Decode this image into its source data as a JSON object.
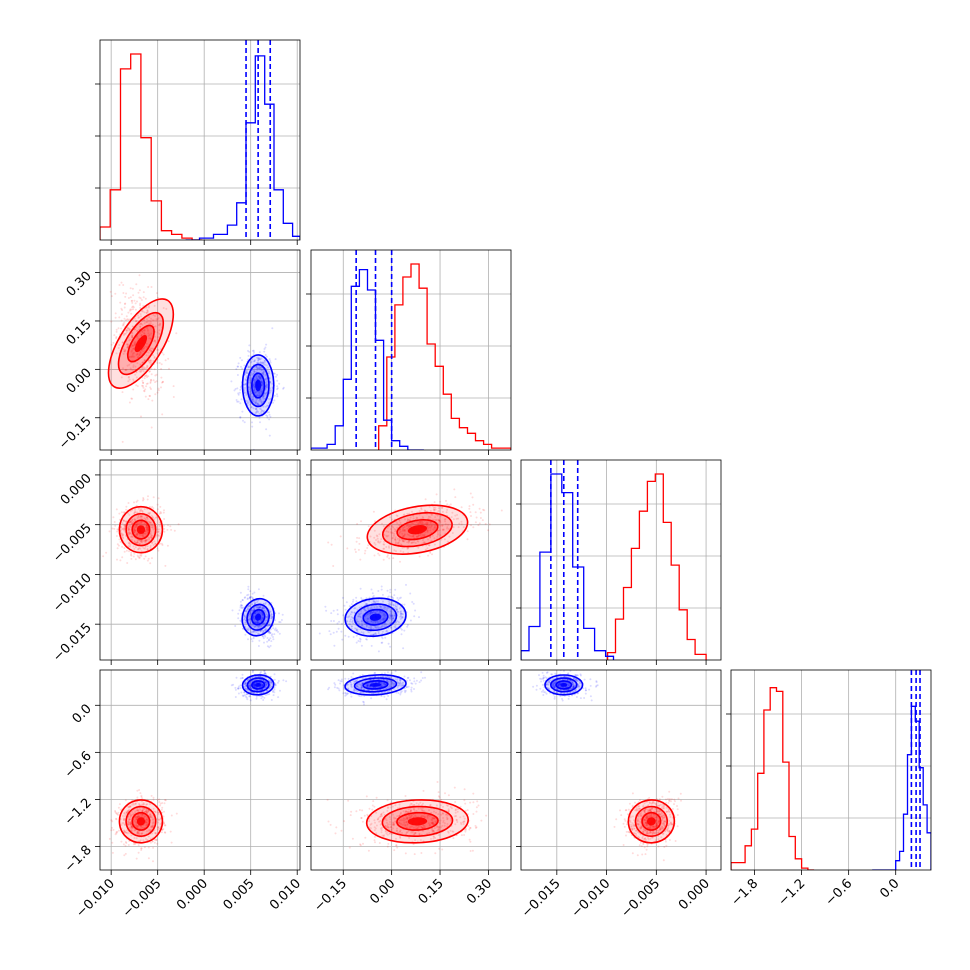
{
  "chart_data": {
    "type": "corner",
    "grid": true,
    "colors": {
      "red": "#ff0000",
      "blue": "#0000ff"
    },
    "parameters": [
      {
        "range": [
          -0.0112,
          0.0103
        ],
        "ticks": [
          -0.01,
          -0.005,
          0.0,
          0.005,
          0.01
        ],
        "tick_labels": [
          "−0.010",
          "−0.005",
          "0.000",
          "0.005",
          "0.010"
        ]
      },
      {
        "range": [
          -0.25,
          0.37
        ],
        "ticks": [
          -0.15,
          0.0,
          0.15,
          0.3
        ],
        "tick_labels": [
          "−0.15",
          "0.00",
          "0.15",
          "0.30"
        ]
      },
      {
        "range": [
          -0.0186,
          0.0015
        ],
        "ticks": [
          -0.015,
          -0.01,
          -0.005,
          0.0
        ],
        "tick_labels": [
          "−0.015",
          "−0.010",
          "−0.005",
          "0.000"
        ]
      },
      {
        "range": [
          -2.1,
          0.45
        ],
        "ticks": [
          -1.8,
          -1.2,
          -0.6,
          0.0
        ],
        "tick_labels": [
          "−1.8",
          "−1.2",
          "−0.6",
          "0.0"
        ]
      }
    ],
    "series": [
      {
        "color": "red",
        "mean": [
          -0.0068,
          0.08,
          -0.0055,
          -1.48
        ],
        "sd": [
          0.0011,
          0.075,
          0.0011,
          0.13
        ],
        "hist": [
          {
            "edges": [
              -0.0112,
              -0.0101,
              -0.009,
              -0.0079,
              -0.0068,
              -0.0057,
              -0.0046,
              -0.0035,
              -0.0024,
              -0.0013,
              -0.0002
            ],
            "counts": [
              0.07,
              0.27,
              0.92,
              1.0,
              0.55,
              0.21,
              0.05,
              0.03,
              0.01,
              0.0
            ]
          },
          {
            "edges": [
              -0.04,
              -0.015,
              0.01,
              0.035,
              0.06,
              0.085,
              0.11,
              0.135,
              0.16,
              0.185,
              0.21,
              0.235,
              0.26,
              0.285,
              0.31,
              0.37
            ],
            "counts": [
              0.13,
              0.5,
              0.78,
              0.93,
              1.0,
              0.87,
              0.57,
              0.45,
              0.3,
              0.17,
              0.12,
              0.09,
              0.05,
              0.03,
              0.01
            ]
          },
          {
            "edges": [
              -0.0099,
              -0.0091,
              -0.0083,
              -0.0075,
              -0.0067,
              -0.0059,
              -0.0051,
              -0.0043,
              -0.0035,
              -0.0027,
              -0.0019,
              -0.0011,
              0.0
            ],
            "counts": [
              0.04,
              0.22,
              0.39,
              0.6,
              0.8,
              0.96,
              1.0,
              0.74,
              0.51,
              0.27,
              0.11,
              0.03
            ]
          },
          {
            "edges": [
              -2.1,
              -1.92,
              -1.84,
              -1.76,
              -1.68,
              -1.6,
              -1.52,
              -1.44,
              -1.36,
              -1.28,
              -1.2,
              -1.12,
              -1.04
            ],
            "counts": [
              0.04,
              0.13,
              0.22,
              0.52,
              0.86,
              0.98,
              0.96,
              0.58,
              0.18,
              0.06,
              0.01,
              0.0
            ]
          }
        ]
      },
      {
        "color": "blue",
        "mean": [
          0.0058,
          -0.05,
          -0.0143,
          0.26
        ],
        "sd": [
          0.0008,
          0.045,
          0.0009,
          0.06
        ],
        "quantiles": [
          [
            0.0045,
            0.0058,
            0.0071
          ],
          [
            -0.11,
            -0.05,
            0.0
          ],
          [
            -0.0156,
            -0.0143,
            -0.0129
          ],
          [
            0.2,
            0.26,
            0.31
          ]
        ],
        "hist": [
          {
            "edges": [
              -0.002,
              -0.0005,
              0.001,
              0.0025,
              0.0035,
              0.0045,
              0.0055,
              0.0065,
              0.0075,
              0.0085,
              0.0095,
              0.0103
            ],
            "counts": [
              0.0,
              0.01,
              0.03,
              0.08,
              0.2,
              0.63,
              0.99,
              0.73,
              0.27,
              0.09,
              0.02
            ]
          },
          {
            "edges": [
              -0.25,
              -0.2,
              -0.175,
              -0.15,
              -0.125,
              -0.1,
              -0.075,
              -0.05,
              -0.025,
              0.0,
              0.025,
              0.05,
              0.1
            ],
            "counts": [
              0.01,
              0.03,
              0.13,
              0.38,
              0.88,
              0.97,
              0.86,
              0.59,
              0.16,
              0.05,
              0.02,
              0.0
            ]
          },
          {
            "edges": [
              -0.0186,
              -0.0178,
              -0.0167,
              -0.0156,
              -0.0145,
              -0.0134,
              -0.0123,
              -0.0112,
              -0.0101,
              -0.0093
            ],
            "counts": [
              0.05,
              0.18,
              0.58,
              1.0,
              0.9,
              0.5,
              0.17,
              0.05,
              0.02
            ]
          },
          {
            "edges": [
              -0.3,
              0.0,
              0.05,
              0.1,
              0.15,
              0.2,
              0.25,
              0.3,
              0.35,
              0.4,
              0.45
            ],
            "counts": [
              0.0,
              0.05,
              0.1,
              0.3,
              0.62,
              0.88,
              0.8,
              0.55,
              0.35,
              0.2
            ]
          }
        ]
      }
    ]
  }
}
